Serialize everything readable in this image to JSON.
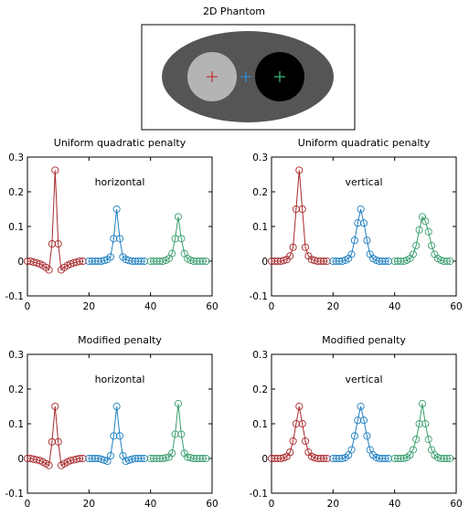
{
  "phantom": {
    "title": "2D Phantom",
    "markers": [
      {
        "name": "red-cross",
        "color": "#c0393b"
      },
      {
        "name": "blue-cross",
        "color": "#2e8bd0"
      },
      {
        "name": "green-cross",
        "color": "#3fb07a"
      }
    ]
  },
  "colors": {
    "red": "#a8292c",
    "blue": "#1f7fc0",
    "green": "#3a9e6e"
  },
  "chart_data": [
    {
      "type": "line",
      "title": "Uniform quadratic penalty",
      "annotation": "horizontal",
      "xlim": [
        0,
        60
      ],
      "ylim": [
        -0.1,
        0.3
      ],
      "xticks": [
        "0",
        "20",
        "40",
        "60"
      ],
      "yticks": [
        "-0.1",
        "0",
        "0.1",
        "0.2",
        "0.3"
      ],
      "series": [
        {
          "color": "red",
          "x": [
            0,
            1,
            2,
            3,
            4,
            5,
            6,
            7,
            8,
            9,
            10,
            11,
            12,
            13,
            14,
            15,
            16,
            17,
            18
          ],
          "y": [
            0,
            0,
            -0.003,
            -0.005,
            -0.008,
            -0.012,
            -0.018,
            -0.025,
            0.05,
            0.262,
            0.05,
            -0.025,
            -0.018,
            -0.012,
            -0.008,
            -0.005,
            -0.003,
            0,
            0
          ]
        },
        {
          "color": "blue",
          "x": [
            20,
            21,
            22,
            23,
            24,
            25,
            26,
            27,
            28,
            29,
            30,
            31,
            32,
            33,
            34,
            35,
            36,
            37,
            38
          ],
          "y": [
            0,
            0,
            0,
            0,
            0,
            0.002,
            0.005,
            0.012,
            0.065,
            0.15,
            0.065,
            0.012,
            0.005,
            0.002,
            0,
            0,
            0,
            0,
            0
          ]
        },
        {
          "color": "green",
          "x": [
            40,
            41,
            42,
            43,
            44,
            45,
            46,
            47,
            48,
            49,
            50,
            51,
            52,
            53,
            54,
            55,
            56,
            57,
            58
          ],
          "y": [
            0,
            0,
            0,
            0,
            0,
            0.003,
            0.008,
            0.022,
            0.065,
            0.128,
            0.065,
            0.022,
            0.008,
            0.003,
            0,
            0,
            0,
            0,
            0
          ]
        }
      ]
    },
    {
      "type": "line",
      "title": "Uniform quadratic penalty",
      "annotation": "vertical",
      "xlim": [
        0,
        60
      ],
      "ylim": [
        -0.1,
        0.3
      ],
      "xticks": [
        "0",
        "20",
        "40",
        "60"
      ],
      "yticks": [
        "-0.1",
        "0",
        "0.1",
        "0.2",
        "0.3"
      ],
      "series": [
        {
          "color": "red",
          "x": [
            0,
            1,
            2,
            3,
            4,
            5,
            6,
            7,
            8,
            9,
            10,
            11,
            12,
            13,
            14,
            15,
            16,
            17,
            18
          ],
          "y": [
            0,
            0,
            0,
            0,
            0.002,
            0.005,
            0.015,
            0.04,
            0.15,
            0.262,
            0.15,
            0.04,
            0.015,
            0.005,
            0.002,
            0,
            0,
            0,
            0
          ]
        },
        {
          "color": "blue",
          "x": [
            20,
            21,
            22,
            23,
            24,
            25,
            26,
            27,
            28,
            29,
            30,
            31,
            32,
            33,
            34,
            35,
            36,
            37,
            38
          ],
          "y": [
            0,
            0,
            0,
            0,
            0.003,
            0.008,
            0.02,
            0.06,
            0.11,
            0.15,
            0.11,
            0.06,
            0.02,
            0.008,
            0.003,
            0,
            0,
            0,
            0
          ]
        },
        {
          "color": "green",
          "x": [
            40,
            41,
            42,
            43,
            44,
            45,
            46,
            47,
            48,
            49,
            50,
            51,
            52,
            53,
            54,
            55,
            56,
            57,
            58
          ],
          "y": [
            0,
            0,
            0,
            0,
            0.003,
            0.008,
            0.02,
            0.045,
            0.09,
            0.128,
            0.115,
            0.085,
            0.045,
            0.02,
            0.008,
            0.003,
            0,
            0,
            0
          ]
        }
      ]
    },
    {
      "type": "line",
      "title": "Modified penalty",
      "annotation": "horizontal",
      "xlim": [
        0,
        60
      ],
      "ylim": [
        -0.1,
        0.3
      ],
      "xticks": [
        "0",
        "20",
        "40",
        "60"
      ],
      "yticks": [
        "-0.1",
        "0",
        "0.1",
        "0.2",
        "0.3"
      ],
      "series": [
        {
          "color": "red",
          "x": [
            0,
            1,
            2,
            3,
            4,
            5,
            6,
            7,
            8,
            9,
            10,
            11,
            12,
            13,
            14,
            15,
            16,
            17,
            18
          ],
          "y": [
            0,
            0,
            -0.002,
            -0.004,
            -0.006,
            -0.01,
            -0.015,
            -0.02,
            0.048,
            0.15,
            0.048,
            -0.02,
            -0.015,
            -0.01,
            -0.006,
            -0.004,
            -0.002,
            0,
            0
          ]
        },
        {
          "color": "blue",
          "x": [
            20,
            21,
            22,
            23,
            24,
            25,
            26,
            27,
            28,
            29,
            30,
            31,
            32,
            33,
            34,
            35,
            36,
            37,
            38
          ],
          "y": [
            0,
            0,
            0,
            0,
            -0.002,
            -0.005,
            -0.008,
            0.008,
            0.065,
            0.15,
            0.065,
            0.008,
            -0.008,
            -0.005,
            -0.002,
            0,
            0,
            0,
            0
          ]
        },
        {
          "color": "green",
          "x": [
            40,
            41,
            42,
            43,
            44,
            45,
            46,
            47,
            48,
            49,
            50,
            51,
            52,
            53,
            54,
            55,
            56,
            57,
            58
          ],
          "y": [
            0,
            0,
            0,
            0,
            0,
            0.002,
            0.004,
            0.015,
            0.07,
            0.158,
            0.07,
            0.015,
            0.004,
            0.002,
            0,
            0,
            0,
            0,
            0
          ]
        }
      ]
    },
    {
      "type": "line",
      "title": "Modified penalty",
      "annotation": "vertical",
      "xlim": [
        0,
        60
      ],
      "ylim": [
        -0.1,
        0.3
      ],
      "xticks": [
        "0",
        "20",
        "40",
        "60"
      ],
      "yticks": [
        "-0.1",
        "0",
        "0.1",
        "0.2",
        "0.3"
      ],
      "series": [
        {
          "color": "red",
          "x": [
            0,
            1,
            2,
            3,
            4,
            5,
            6,
            7,
            8,
            9,
            10,
            11,
            12,
            13,
            14,
            15,
            16,
            17,
            18
          ],
          "y": [
            0,
            0,
            0,
            0,
            0.002,
            0.006,
            0.018,
            0.05,
            0.1,
            0.15,
            0.1,
            0.05,
            0.018,
            0.006,
            0.002,
            0,
            0,
            0,
            0
          ]
        },
        {
          "color": "blue",
          "x": [
            20,
            21,
            22,
            23,
            24,
            25,
            26,
            27,
            28,
            29,
            30,
            31,
            32,
            33,
            34,
            35,
            36,
            37,
            38
          ],
          "y": [
            0,
            0,
            0,
            0,
            0.003,
            0.01,
            0.025,
            0.065,
            0.11,
            0.15,
            0.11,
            0.065,
            0.025,
            0.01,
            0.003,
            0,
            0,
            0,
            0
          ]
        },
        {
          "color": "green",
          "x": [
            40,
            41,
            42,
            43,
            44,
            45,
            46,
            47,
            48,
            49,
            50,
            51,
            52,
            53,
            54,
            55,
            56,
            57,
            58
          ],
          "y": [
            0,
            0,
            0,
            0,
            0.003,
            0.01,
            0.025,
            0.055,
            0.1,
            0.158,
            0.1,
            0.055,
            0.025,
            0.01,
            0.003,
            0,
            0,
            0,
            0
          ]
        }
      ]
    }
  ]
}
